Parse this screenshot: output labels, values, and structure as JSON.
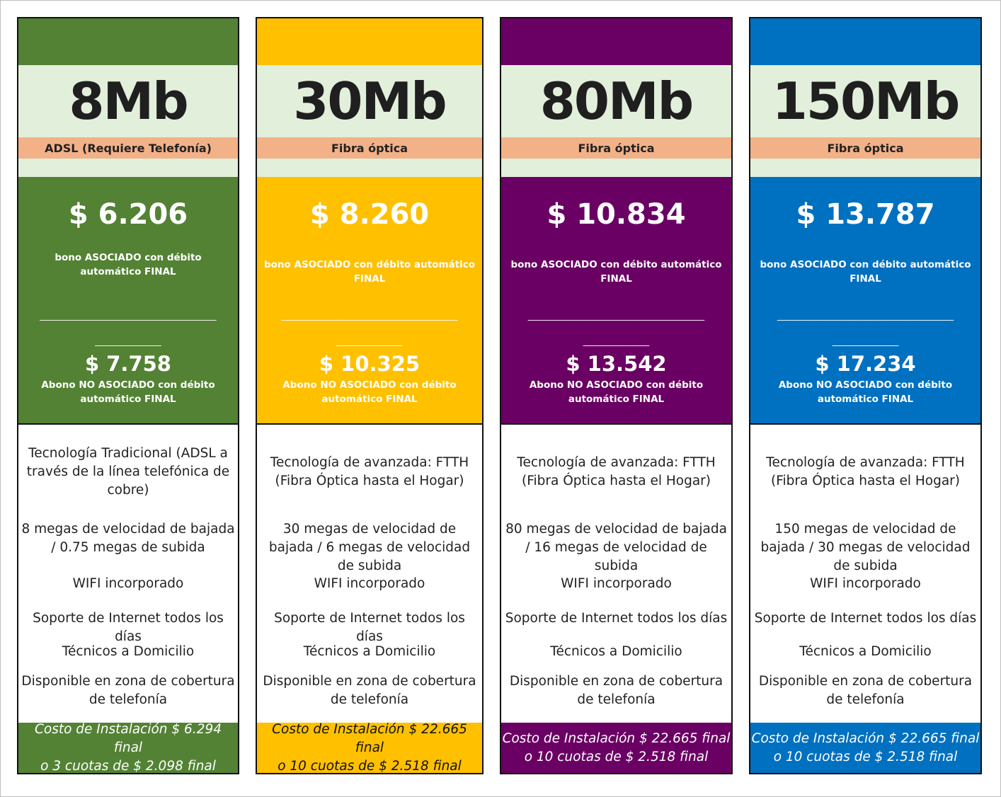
{
  "colors": {
    "green": "#538234",
    "yellow": "#ffc000",
    "purple": "#6a0063",
    "blue": "#0070c0",
    "speed_bg": "#e2efdb",
    "tech_bg": "#f3b187"
  },
  "sep_line_1": "________________________________",
  "sep_line_2": "____________",
  "plans": [
    {
      "speed": "8Mb",
      "tech": "ADSL (Requiere Telefonía)",
      "price": "$ 6.206",
      "bono": "bono ASOCIADO con débito automático FINAL",
      "alt_price": "$ 7.758",
      "no_assoc": "Abono NO ASOCIADO con débito automático FINAL",
      "features": {
        "tecnologia": "Tecnología Tradicional (ADSL a través de la línea telefónica de cobre)",
        "velocidad": "8 megas de velocidad de bajada / 0.75 megas de subida",
        "wifi": "WIFI incorporado",
        "soporte": "Soporte de Internet todos los días",
        "tecnicos": "Técnicos a Domicilio",
        "zona": "Disponible en zona de cobertura de telefonía"
      },
      "install_line1": "Costo de Instalación $ 6.294  final",
      "install_line2": "o 3 cuotas de $ 2.098 final"
    },
    {
      "speed": "30Mb",
      "tech": "Fibra óptica",
      "price": "$ 8.260",
      "bono": "bono ASOCIADO con débito automático FINAL",
      "alt_price": "$ 10.325",
      "no_assoc": "Abono NO ASOCIADO con débito automático FINAL",
      "features": {
        "tecnologia": "Tecnología de avanzada: FTTH (Fibra Óptica hasta el Hogar)",
        "velocidad": "30 megas  de velocidad de bajada /  6 megas de velocidad de subida",
        "wifi": "WIFI incorporado",
        "soporte": "Soporte de Internet todos los días",
        "tecnicos": "Técnicos a Domicilio",
        "zona": "Disponible en zona de cobertura de telefonía"
      },
      "install_line1": "Costo de Instalación $ 22.665  final",
      "install_line2": "o 10 cuotas de $ 2.518 final"
    },
    {
      "speed": "80Mb",
      "tech": "Fibra óptica",
      "price": "$ 10.834",
      "bono": "bono ASOCIADO con débito automático FINAL",
      "alt_price": "$ 13.542",
      "no_assoc": "Abono NO ASOCIADO con débito automático FINAL",
      "features": {
        "tecnologia": "Tecnología de avanzada: FTTH (Fibra Óptica hasta el Hogar)",
        "velocidad": "80 megas  de velocidad de bajada /  16 megas de velocidad de subida",
        "wifi": "WIFI incorporado",
        "soporte": "Soporte de Internet todos los días",
        "tecnicos": "Técnicos a Domicilio",
        "zona": "Disponible en zona de cobertura de telefonía"
      },
      "install_line1": "Costo de Instalación $ 22.665  final",
      "install_line2": "o 10 cuotas de $ 2.518 final"
    },
    {
      "speed": "150Mb",
      "tech": "Fibra óptica",
      "price": "$ 13.787",
      "bono": "bono ASOCIADO con débito automático FINAL",
      "alt_price": "$ 17.234",
      "no_assoc": "Abono NO ASOCIADO con débito automático FINAL",
      "features": {
        "tecnologia": "Tecnología de avanzada: FTTH (Fibra Óptica hasta el Hogar)",
        "velocidad": "150 megas  de velocidad de bajada /  30 megas de velocidad de subida",
        "wifi": "WIFI incorporado",
        "soporte": "Soporte de Internet todos los días",
        "tecnicos": "Técnicos a Domicilio",
        "zona": "Disponible en zona de cobertura de telefonía"
      },
      "install_line1": "Costo de Instalación $ 22.665  final",
      "install_line2": "o 10 cuotas de $ 2.518 final"
    }
  ]
}
